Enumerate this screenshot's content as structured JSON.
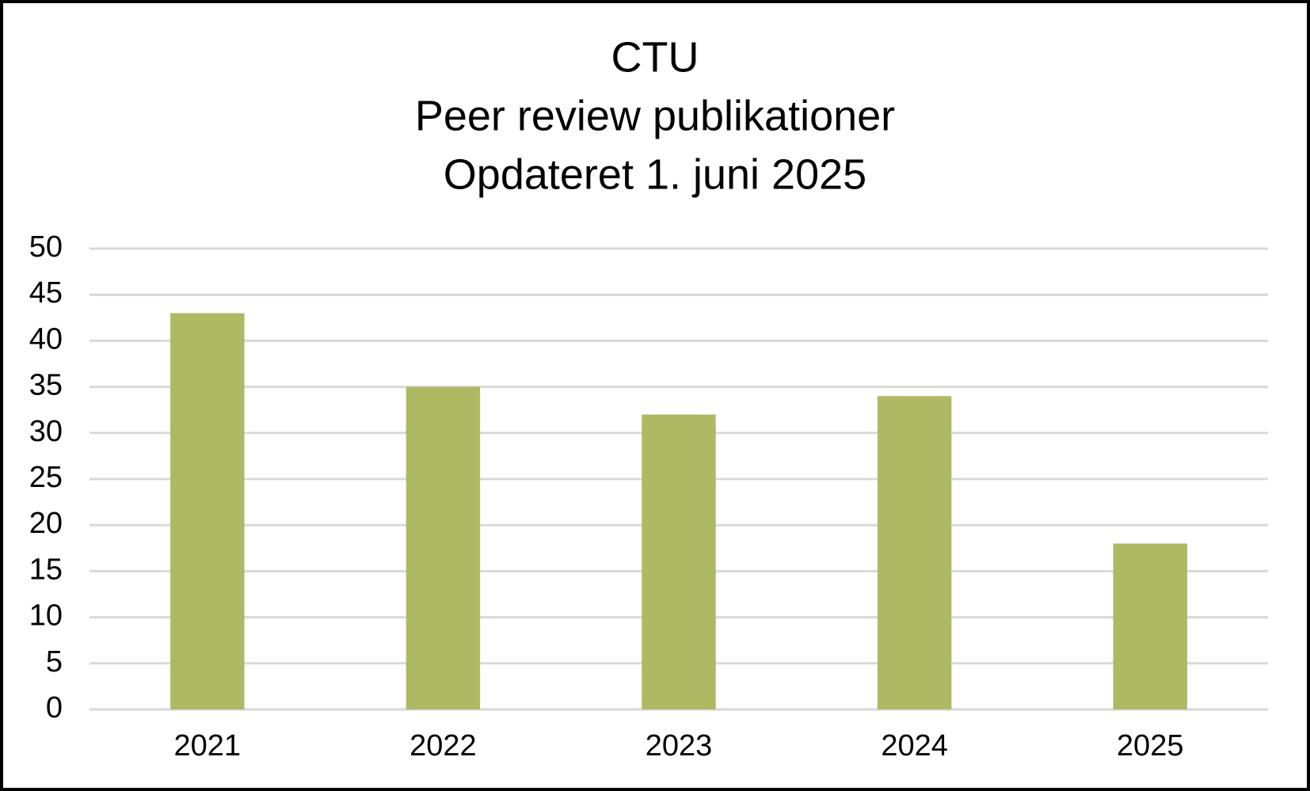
{
  "chart_data": {
    "type": "bar",
    "title": [
      "CTU",
      "Peer review publikationer",
      "Opdateret 1. juni 2025"
    ],
    "categories": [
      "2021",
      "2022",
      "2023",
      "2024",
      "2025"
    ],
    "values": [
      43,
      35,
      32,
      34,
      18
    ],
    "color": "#afb964",
    "ylim": [
      0,
      50
    ],
    "yticks": [
      0,
      5,
      10,
      15,
      20,
      25,
      30,
      35,
      40,
      45,
      50
    ],
    "grid": true
  }
}
